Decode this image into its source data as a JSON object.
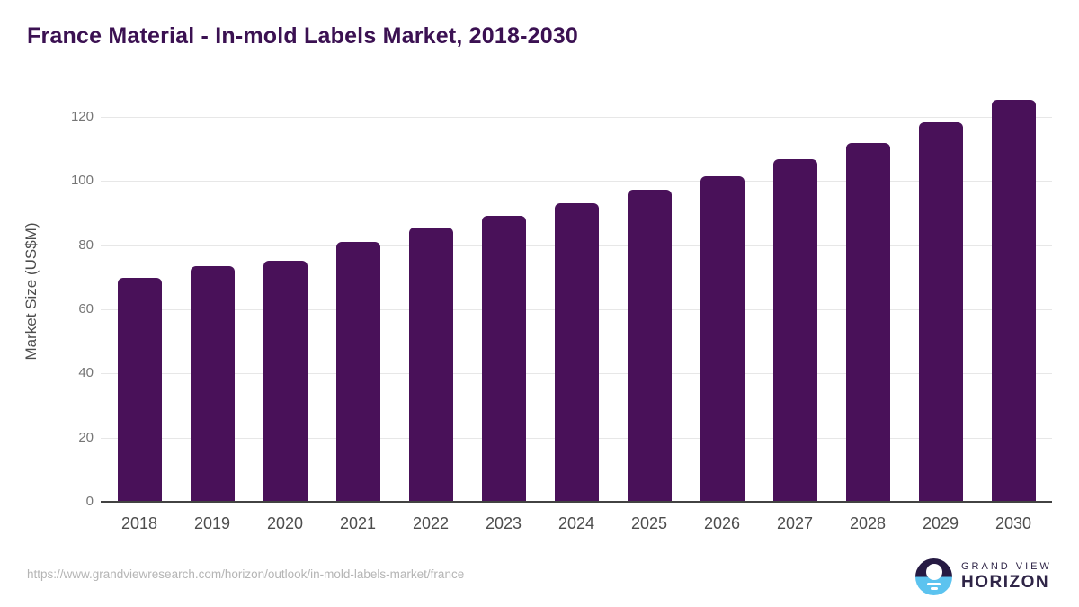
{
  "title": "France Material - In-mold Labels Market, 2018-2030",
  "chart_data": {
    "type": "bar",
    "categories": [
      "2018",
      "2019",
      "2020",
      "2021",
      "2022",
      "2023",
      "2024",
      "2025",
      "2026",
      "2027",
      "2028",
      "2029",
      "2030"
    ],
    "values": [
      69.7,
      73.4,
      75.2,
      81.0,
      85.4,
      89.1,
      93.0,
      97.2,
      101.6,
      106.7,
      112.0,
      118.2,
      125.3
    ],
    "title": "France Material - In-mold Labels Market, 2018-2030",
    "xlabel": "",
    "ylabel": "Market Size (US$M)",
    "ylim": [
      0,
      131.2
    ],
    "yticks": [
      0,
      20,
      40,
      60,
      80,
      100,
      120
    ],
    "grid": "horizontal",
    "legend": "none",
    "bar_color": "#491159"
  },
  "colors": {
    "title": "#3b1152",
    "bar": "#491159",
    "axis_line": "#424242",
    "gridline": "#e7e7e7",
    "tick_text": "#757575",
    "category_text": "#4d4d4d",
    "footer_text": "#b5b5b5",
    "logo_text": "#2f2547",
    "logo_dark": "#261a43",
    "logo_blue": "#5cc3ef"
  },
  "footer": {
    "source_url": "https://www.grandviewresearch.com/horizon/outlook/in-mold-labels-market/france",
    "logo": {
      "line1": "GRAND VIEW",
      "line2": "HORIZON"
    }
  }
}
